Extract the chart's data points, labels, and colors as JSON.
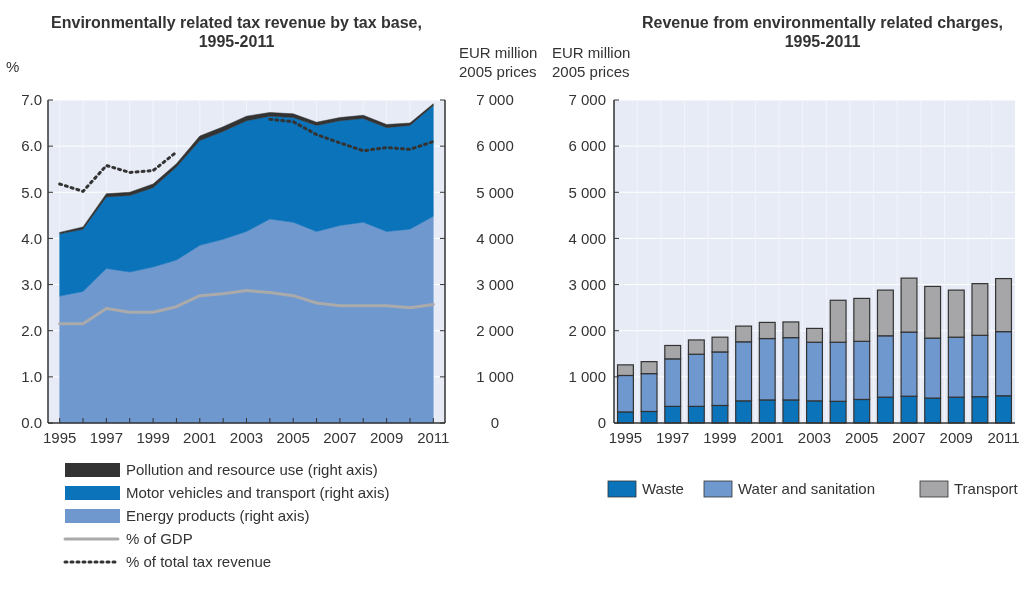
{
  "chart_data": [
    {
      "type": "area",
      "title": "Environmentally related tax revenue by tax base, 1995-2011",
      "ylabel": "%",
      "y2label": "EUR million 2005 prices",
      "stacked": true,
      "grid": true,
      "legend": "bottom",
      "x": [
        1995,
        1996,
        1997,
        1998,
        1999,
        2000,
        2001,
        2002,
        2003,
        2004,
        2005,
        2006,
        2007,
        2008,
        2009,
        2010,
        2011
      ],
      "xlim": [
        1994.5,
        2011.5
      ],
      "xticks": [
        1995,
        {
          "value": 1996,
          "label": null
        },
        1997,
        {
          "value": 1998,
          "label": null
        },
        1999,
        {
          "value": 2000,
          "label": null
        },
        2001,
        {
          "value": 2002,
          "label": null
        },
        2003,
        {
          "value": 2004,
          "label": null
        },
        2005,
        {
          "value": 2006,
          "label": null
        },
        2007,
        {
          "value": 2008,
          "label": null
        },
        2009,
        {
          "value": 2010,
          "label": null
        },
        2011
      ],
      "ylim": [
        0,
        7
      ],
      "yticks": [
        {
          "value": 0,
          "label": "0.0"
        },
        {
          "value": 1,
          "label": "1.0"
        },
        {
          "value": 2,
          "label": "2.0"
        },
        {
          "value": 3,
          "label": "3.0"
        },
        {
          "value": 4,
          "label": "4.0"
        },
        {
          "value": 5,
          "label": "5.0"
        },
        {
          "value": 6,
          "label": "6.0"
        },
        {
          "value": 7,
          "label": "7.0"
        }
      ],
      "y2lim": [
        0,
        7000
      ],
      "y2ticks": [
        0,
        {
          "value": 1000,
          "label": "1 000"
        },
        {
          "value": 2000,
          "label": "2 000"
        },
        {
          "value": 3000,
          "label": "3 000"
        },
        {
          "value": 4000,
          "label": "4 000"
        },
        {
          "value": 5000,
          "label": "5 000"
        },
        {
          "value": 6000,
          "label": "6 000"
        },
        {
          "value": 7000,
          "label": "7 000"
        }
      ],
      "series": [
        {
          "name": "Energy products (right axis)",
          "type": "area",
          "axis": "y2",
          "color": "#6f98cf",
          "values": [
            2750,
            2850,
            3350,
            3270,
            3380,
            3530,
            3850,
            3980,
            4150,
            4420,
            4350,
            4150,
            4280,
            4350,
            4150,
            4200,
            4480
          ]
        },
        {
          "name": "Motor vehicles and transport (right axis)",
          "type": "area",
          "axis": "y2",
          "color": "#0b73b9",
          "values": [
            1350,
            1350,
            1550,
            1660,
            1720,
            2020,
            2270,
            2340,
            2400,
            2230,
            2270,
            2300,
            2270,
            2250,
            2250,
            2250,
            2400
          ]
        },
        {
          "name": "Pollution and resource use  (right axis)",
          "type": "area",
          "axis": "y2",
          "color": "#333333",
          "values": [
            30,
            50,
            70,
            70,
            80,
            70,
            100,
            100,
            100,
            80,
            80,
            70,
            70,
            70,
            70,
            50,
            40
          ]
        },
        {
          "name": "% of GDP",
          "type": "line",
          "color": "#aaaaaa",
          "line_style": "solid",
          "values": [
            2.15,
            2.15,
            2.48,
            2.4,
            2.4,
            2.52,
            2.76,
            2.8,
            2.87,
            2.83,
            2.76,
            2.6,
            2.54,
            2.54,
            2.54,
            2.5,
            2.57
          ]
        },
        {
          "name": "% of total tax revenue",
          "type": "line",
          "color": "#333333",
          "line_style": "dotted",
          "values": [
            5.18,
            5.02,
            5.58,
            5.43,
            5.47,
            5.87,
            null,
            null,
            null,
            6.58,
            6.53,
            6.25,
            6.07,
            5.9,
            5.97,
            5.93,
            6.1
          ]
        }
      ]
    },
    {
      "type": "bar",
      "title": "Revenue from environmentally related charges, 1995-2011",
      "ylabel": "EUR million 2005 prices",
      "stacked": true,
      "grid": true,
      "legend": "bottom",
      "categories": [
        "1995",
        null,
        "1997",
        null,
        "1999",
        null,
        "2001",
        null,
        "2003",
        null,
        "2005",
        null,
        "2007",
        null,
        "2009",
        null,
        "2011"
      ],
      "ylim": [
        0,
        7000
      ],
      "yticks": [
        0,
        {
          "value": 1000,
          "label": "1 000"
        },
        {
          "value": 2000,
          "label": "2 000"
        },
        {
          "value": 3000,
          "label": "3 000"
        },
        {
          "value": 4000,
          "label": "4 000"
        },
        {
          "value": 5000,
          "label": "5 000"
        },
        {
          "value": 6000,
          "label": "6 000"
        },
        {
          "value": 7000,
          "label": "7 000"
        }
      ],
      "series": [
        {
          "name": "Waste",
          "color": "#0b73b9",
          "values": [
            240,
            250,
            360,
            360,
            380,
            480,
            500,
            500,
            480,
            470,
            510,
            560,
            580,
            540,
            560,
            570,
            590
          ]
        },
        {
          "name": "Water and sanitation",
          "color": "#6f98cf",
          "values": [
            790,
            820,
            1030,
            1130,
            1160,
            1280,
            1330,
            1350,
            1270,
            1280,
            1260,
            1330,
            1390,
            1300,
            1300,
            1330,
            1390
          ]
        },
        {
          "name": "Transport",
          "color": "#a6a6a8",
          "values": [
            230,
            260,
            290,
            310,
            320,
            340,
            350,
            340,
            300,
            910,
            930,
            990,
            1170,
            1120,
            1020,
            1120,
            1150
          ]
        }
      ]
    }
  ]
}
